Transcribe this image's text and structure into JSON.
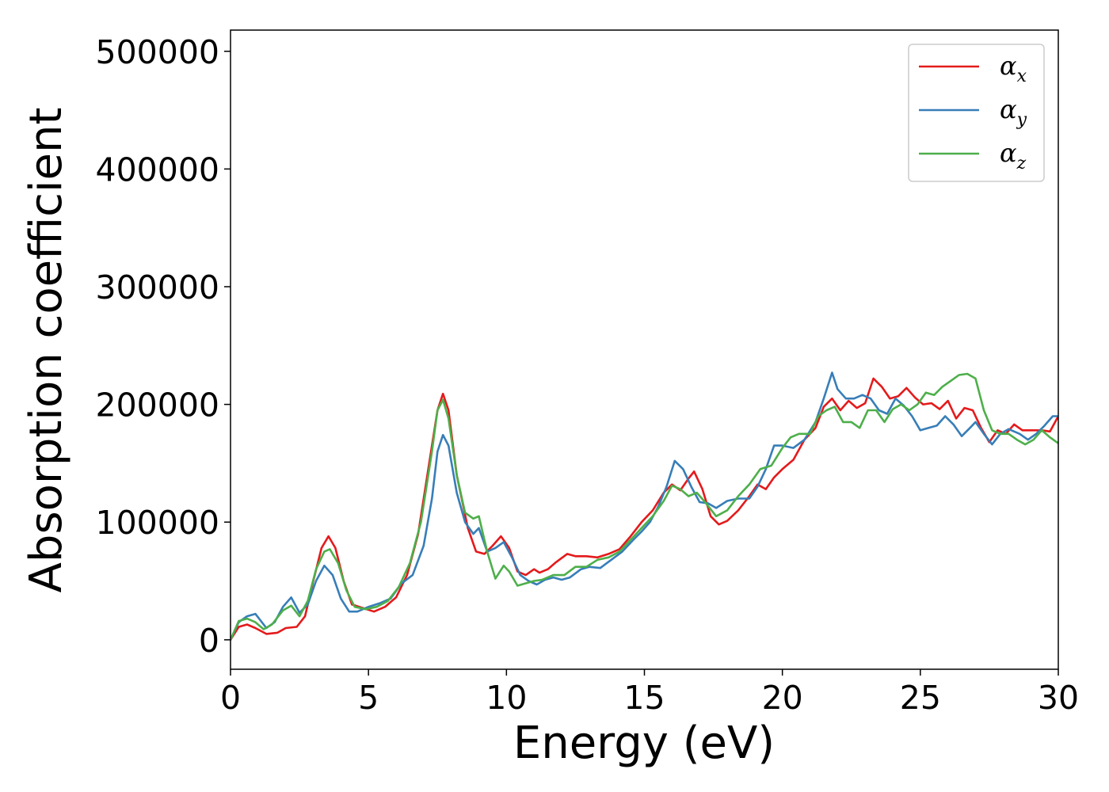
{
  "chart_data": {
    "type": "line",
    "xlabel": "Energy (eV)",
    "ylabel": "Absorption coefficient",
    "xlim": [
      0,
      30
    ],
    "ylim": [
      -25000,
      518000
    ],
    "x_ticks": [
      0,
      5,
      10,
      15,
      20,
      25,
      30
    ],
    "x_tick_labels": [
      "0",
      "5",
      "10",
      "15",
      "20",
      "25",
      "30"
    ],
    "y_ticks": [
      0,
      100000,
      200000,
      300000,
      400000,
      500000
    ],
    "y_tick_labels": [
      "0",
      "100000",
      "200000",
      "300000",
      "400000",
      "500000"
    ],
    "grid": false,
    "legend_position": "top-right",
    "series": [
      {
        "name": "α_x",
        "legend_main": "α",
        "legend_sub": "x",
        "color": "#e41a1c",
        "points": [
          [
            0,
            0
          ],
          [
            0.3,
            11000
          ],
          [
            0.6,
            13000
          ],
          [
            0.9,
            10000
          ],
          [
            1.3,
            5000
          ],
          [
            1.7,
            6000
          ],
          [
            2.0,
            10000
          ],
          [
            2.4,
            11000
          ],
          [
            2.7,
            20000
          ],
          [
            3.0,
            50000
          ],
          [
            3.3,
            78000
          ],
          [
            3.55,
            88000
          ],
          [
            3.8,
            78000
          ],
          [
            4.1,
            50000
          ],
          [
            4.4,
            30000
          ],
          [
            4.8,
            27000
          ],
          [
            5.2,
            24000
          ],
          [
            5.6,
            28000
          ],
          [
            6.0,
            36000
          ],
          [
            6.4,
            55000
          ],
          [
            6.8,
            90000
          ],
          [
            7.2,
            150000
          ],
          [
            7.5,
            195000
          ],
          [
            7.7,
            209000
          ],
          [
            7.9,
            195000
          ],
          [
            8.2,
            140000
          ],
          [
            8.6,
            95000
          ],
          [
            8.9,
            75000
          ],
          [
            9.2,
            73000
          ],
          [
            9.5,
            80000
          ],
          [
            9.8,
            88000
          ],
          [
            10.1,
            78000
          ],
          [
            10.4,
            58000
          ],
          [
            10.7,
            55000
          ],
          [
            11.0,
            60000
          ],
          [
            11.2,
            57000
          ],
          [
            11.5,
            60000
          ],
          [
            11.8,
            66000
          ],
          [
            12.2,
            73000
          ],
          [
            12.5,
            71000
          ],
          [
            12.9,
            71000
          ],
          [
            13.3,
            70000
          ],
          [
            13.7,
            73000
          ],
          [
            14.1,
            77000
          ],
          [
            14.5,
            88000
          ],
          [
            14.9,
            100000
          ],
          [
            15.3,
            110000
          ],
          [
            15.7,
            125000
          ],
          [
            16.0,
            132000
          ],
          [
            16.3,
            127000
          ],
          [
            16.6,
            137000
          ],
          [
            16.8,
            143000
          ],
          [
            17.1,
            128000
          ],
          [
            17.4,
            105000
          ],
          [
            17.7,
            98000
          ],
          [
            18.0,
            101000
          ],
          [
            18.4,
            110000
          ],
          [
            18.8,
            122000
          ],
          [
            19.1,
            132000
          ],
          [
            19.4,
            128000
          ],
          [
            19.7,
            138000
          ],
          [
            20.0,
            145000
          ],
          [
            20.4,
            153000
          ],
          [
            20.8,
            170000
          ],
          [
            21.2,
            180000
          ],
          [
            21.5,
            198000
          ],
          [
            21.8,
            205000
          ],
          [
            22.1,
            195000
          ],
          [
            22.4,
            203000
          ],
          [
            22.7,
            197000
          ],
          [
            23.0,
            201000
          ],
          [
            23.3,
            222000
          ],
          [
            23.6,
            215000
          ],
          [
            23.9,
            205000
          ],
          [
            24.2,
            207000
          ],
          [
            24.5,
            214000
          ],
          [
            24.8,
            206000
          ],
          [
            25.1,
            200000
          ],
          [
            25.4,
            201000
          ],
          [
            25.7,
            196000
          ],
          [
            26.0,
            203000
          ],
          [
            26.3,
            188000
          ],
          [
            26.6,
            197000
          ],
          [
            26.9,
            195000
          ],
          [
            27.2,
            180000
          ],
          [
            27.5,
            168000
          ],
          [
            27.8,
            178000
          ],
          [
            28.1,
            175000
          ],
          [
            28.4,
            183000
          ],
          [
            28.7,
            178000
          ],
          [
            29.0,
            178000
          ],
          [
            29.4,
            178000
          ],
          [
            29.7,
            177000
          ],
          [
            30.0,
            190000
          ]
        ]
      },
      {
        "name": "α_y",
        "legend_main": "α",
        "legend_sub": "y",
        "color": "#377eb8",
        "points": [
          [
            0,
            0
          ],
          [
            0.3,
            15000
          ],
          [
            0.6,
            20000
          ],
          [
            0.9,
            22000
          ],
          [
            1.3,
            10000
          ],
          [
            1.6,
            15000
          ],
          [
            1.9,
            28000
          ],
          [
            2.2,
            36000
          ],
          [
            2.5,
            23000
          ],
          [
            2.8,
            30000
          ],
          [
            3.1,
            50000
          ],
          [
            3.4,
            63000
          ],
          [
            3.7,
            55000
          ],
          [
            4.0,
            35000
          ],
          [
            4.3,
            24000
          ],
          [
            4.6,
            24000
          ],
          [
            5.0,
            28000
          ],
          [
            5.4,
            31000
          ],
          [
            5.8,
            35000
          ],
          [
            6.2,
            48000
          ],
          [
            6.6,
            55000
          ],
          [
            7.0,
            80000
          ],
          [
            7.3,
            120000
          ],
          [
            7.5,
            160000
          ],
          [
            7.7,
            174000
          ],
          [
            7.9,
            165000
          ],
          [
            8.2,
            125000
          ],
          [
            8.5,
            100000
          ],
          [
            8.8,
            90000
          ],
          [
            9.0,
            95000
          ],
          [
            9.3,
            75000
          ],
          [
            9.6,
            78000
          ],
          [
            9.9,
            83000
          ],
          [
            10.2,
            70000
          ],
          [
            10.5,
            55000
          ],
          [
            10.8,
            50000
          ],
          [
            11.1,
            47000
          ],
          [
            11.4,
            51000
          ],
          [
            11.7,
            53000
          ],
          [
            12.0,
            51000
          ],
          [
            12.3,
            53000
          ],
          [
            12.7,
            60000
          ],
          [
            13.0,
            62000
          ],
          [
            13.4,
            61000
          ],
          [
            13.8,
            68000
          ],
          [
            14.2,
            75000
          ],
          [
            14.6,
            85000
          ],
          [
            14.9,
            92000
          ],
          [
            15.2,
            100000
          ],
          [
            15.5,
            113000
          ],
          [
            15.8,
            130000
          ],
          [
            16.1,
            152000
          ],
          [
            16.4,
            145000
          ],
          [
            16.7,
            130000
          ],
          [
            17.0,
            117000
          ],
          [
            17.3,
            116000
          ],
          [
            17.6,
            112000
          ],
          [
            18.0,
            118000
          ],
          [
            18.4,
            120000
          ],
          [
            18.8,
            120000
          ],
          [
            19.1,
            130000
          ],
          [
            19.4,
            145000
          ],
          [
            19.7,
            165000
          ],
          [
            20.0,
            165000
          ],
          [
            20.4,
            163000
          ],
          [
            20.8,
            170000
          ],
          [
            21.2,
            185000
          ],
          [
            21.5,
            205000
          ],
          [
            21.8,
            227000
          ],
          [
            22.0,
            213000
          ],
          [
            22.3,
            205000
          ],
          [
            22.6,
            205000
          ],
          [
            22.9,
            208000
          ],
          [
            23.2,
            205000
          ],
          [
            23.5,
            195000
          ],
          [
            23.8,
            192000
          ],
          [
            24.1,
            205000
          ],
          [
            24.4,
            199000
          ],
          [
            24.7,
            190000
          ],
          [
            25.0,
            178000
          ],
          [
            25.3,
            180000
          ],
          [
            25.6,
            182000
          ],
          [
            25.9,
            190000
          ],
          [
            26.2,
            183000
          ],
          [
            26.5,
            173000
          ],
          [
            26.8,
            180000
          ],
          [
            27.0,
            185000
          ],
          [
            27.3,
            175000
          ],
          [
            27.6,
            166000
          ],
          [
            27.9,
            175000
          ],
          [
            28.2,
            179000
          ],
          [
            28.6,
            175000
          ],
          [
            28.9,
            170000
          ],
          [
            29.2,
            175000
          ],
          [
            29.5,
            182000
          ],
          [
            29.8,
            190000
          ],
          [
            30.0,
            190000
          ]
        ]
      },
      {
        "name": "α_z",
        "legend_main": "α",
        "legend_sub": "z",
        "color": "#4daf4a",
        "points": [
          [
            0,
            0
          ],
          [
            0.3,
            16000
          ],
          [
            0.6,
            18000
          ],
          [
            0.9,
            15000
          ],
          [
            1.2,
            9000
          ],
          [
            1.5,
            13000
          ],
          [
            1.9,
            25000
          ],
          [
            2.2,
            29000
          ],
          [
            2.5,
            20000
          ],
          [
            2.8,
            33000
          ],
          [
            3.1,
            60000
          ],
          [
            3.4,
            75000
          ],
          [
            3.6,
            77000
          ],
          [
            3.9,
            65000
          ],
          [
            4.2,
            42000
          ],
          [
            4.5,
            28000
          ],
          [
            4.9,
            26000
          ],
          [
            5.3,
            28000
          ],
          [
            5.7,
            33000
          ],
          [
            6.1,
            45000
          ],
          [
            6.5,
            65000
          ],
          [
            6.9,
            100000
          ],
          [
            7.3,
            160000
          ],
          [
            7.5,
            195000
          ],
          [
            7.7,
            204000
          ],
          [
            7.9,
            188000
          ],
          [
            8.2,
            140000
          ],
          [
            8.5,
            108000
          ],
          [
            8.8,
            103000
          ],
          [
            9.0,
            105000
          ],
          [
            9.3,
            75000
          ],
          [
            9.6,
            52000
          ],
          [
            9.9,
            63000
          ],
          [
            10.1,
            58000
          ],
          [
            10.4,
            46000
          ],
          [
            10.7,
            48000
          ],
          [
            11.0,
            50000
          ],
          [
            11.3,
            51000
          ],
          [
            11.7,
            55000
          ],
          [
            12.1,
            55000
          ],
          [
            12.5,
            62000
          ],
          [
            12.9,
            62000
          ],
          [
            13.3,
            68000
          ],
          [
            13.7,
            70000
          ],
          [
            14.1,
            75000
          ],
          [
            14.5,
            85000
          ],
          [
            14.9,
            95000
          ],
          [
            15.3,
            105000
          ],
          [
            15.7,
            118000
          ],
          [
            16.0,
            131000
          ],
          [
            16.3,
            128000
          ],
          [
            16.6,
            122000
          ],
          [
            16.9,
            125000
          ],
          [
            17.2,
            117000
          ],
          [
            17.6,
            105000
          ],
          [
            18.0,
            110000
          ],
          [
            18.4,
            122000
          ],
          [
            18.8,
            132000
          ],
          [
            19.2,
            145000
          ],
          [
            19.6,
            148000
          ],
          [
            20.0,
            163000
          ],
          [
            20.3,
            172000
          ],
          [
            20.6,
            175000
          ],
          [
            21.0,
            175000
          ],
          [
            21.3,
            190000
          ],
          [
            21.6,
            195000
          ],
          [
            21.9,
            198000
          ],
          [
            22.2,
            185000
          ],
          [
            22.5,
            185000
          ],
          [
            22.8,
            180000
          ],
          [
            23.1,
            195000
          ],
          [
            23.4,
            195000
          ],
          [
            23.7,
            185000
          ],
          [
            24.0,
            196000
          ],
          [
            24.3,
            200000
          ],
          [
            24.6,
            195000
          ],
          [
            24.9,
            200000
          ],
          [
            25.2,
            210000
          ],
          [
            25.5,
            208000
          ],
          [
            25.8,
            215000
          ],
          [
            26.1,
            220000
          ],
          [
            26.4,
            225000
          ],
          [
            26.7,
            226000
          ],
          [
            27.0,
            222000
          ],
          [
            27.3,
            195000
          ],
          [
            27.6,
            178000
          ],
          [
            27.9,
            175000
          ],
          [
            28.2,
            175000
          ],
          [
            28.5,
            170000
          ],
          [
            28.8,
            166000
          ],
          [
            29.1,
            170000
          ],
          [
            29.4,
            178000
          ],
          [
            29.7,
            172000
          ],
          [
            30.0,
            167000
          ]
        ]
      }
    ]
  }
}
